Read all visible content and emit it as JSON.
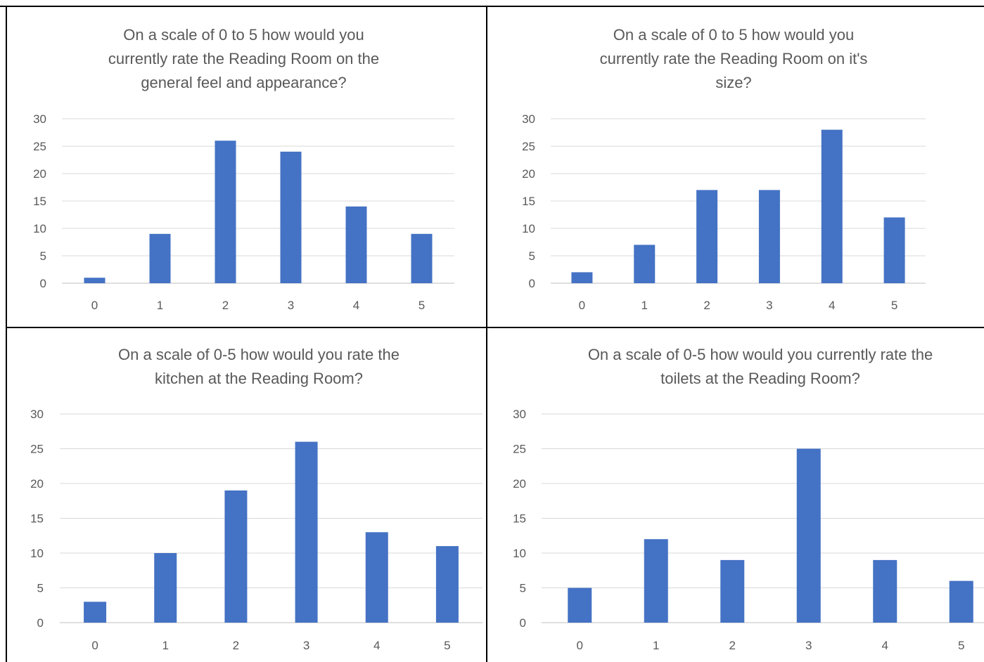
{
  "colors": {
    "bar": "#4472C4",
    "gridline": "#D9D9D9",
    "axis": "#BFBFBF",
    "text": "#595959",
    "border": "#000000"
  },
  "chart_data": [
    {
      "type": "bar",
      "title": "On a scale of 0 to 5 how would you currently rate the Reading Room on the general feel and appearance?",
      "title_lines": [
        "On a scale of 0 to 5 how would you",
        "currently rate the Reading Room on the",
        "general feel and appearance?"
      ],
      "categories": [
        "0",
        "1",
        "2",
        "3",
        "4",
        "5"
      ],
      "values": [
        1,
        9,
        26,
        24,
        14,
        9
      ],
      "ylim": [
        0,
        30
      ],
      "yticks": [
        0,
        5,
        10,
        15,
        20,
        25,
        30
      ],
      "grid": true,
      "legend": "none"
    },
    {
      "type": "bar",
      "title": "On a scale of 0 to 5 how would you currently rate the Reading Room on it's size?",
      "title_lines": [
        "On a scale of 0 to 5 how would you",
        "currently rate the Reading Room on it's",
        "size?"
      ],
      "categories": [
        "0",
        "1",
        "2",
        "3",
        "4",
        "5"
      ],
      "values": [
        2,
        7,
        17,
        17,
        28,
        12
      ],
      "ylim": [
        0,
        30
      ],
      "yticks": [
        0,
        5,
        10,
        15,
        20,
        25,
        30
      ],
      "grid": true,
      "legend": "none"
    },
    {
      "type": "bar",
      "title": "On a scale of 0-5 how would you rate the kitchen at the Reading Room?",
      "title_lines": [
        "On a scale of 0-5 how would you rate the",
        "kitchen at the Reading Room?"
      ],
      "categories": [
        "0",
        "1",
        "2",
        "3",
        "4",
        "5"
      ],
      "values": [
        3,
        10,
        19,
        26,
        13,
        11
      ],
      "ylim": [
        0,
        30
      ],
      "yticks": [
        0,
        5,
        10,
        15,
        20,
        25,
        30
      ],
      "grid": true,
      "legend": "none"
    },
    {
      "type": "bar",
      "title": "On a scale of 0-5 how would you currently rate the toilets at the Reading Room?",
      "title_lines": [
        "On a scale of 0-5 how would you currently rate the",
        "toilets at the Reading Room?"
      ],
      "categories": [
        "0",
        "1",
        "2",
        "3",
        "4",
        "5"
      ],
      "values": [
        5,
        12,
        9,
        25,
        9,
        6
      ],
      "ylim": [
        0,
        30
      ],
      "yticks": [
        0,
        5,
        10,
        15,
        20,
        25,
        30
      ],
      "grid": true,
      "legend": "none"
    }
  ]
}
